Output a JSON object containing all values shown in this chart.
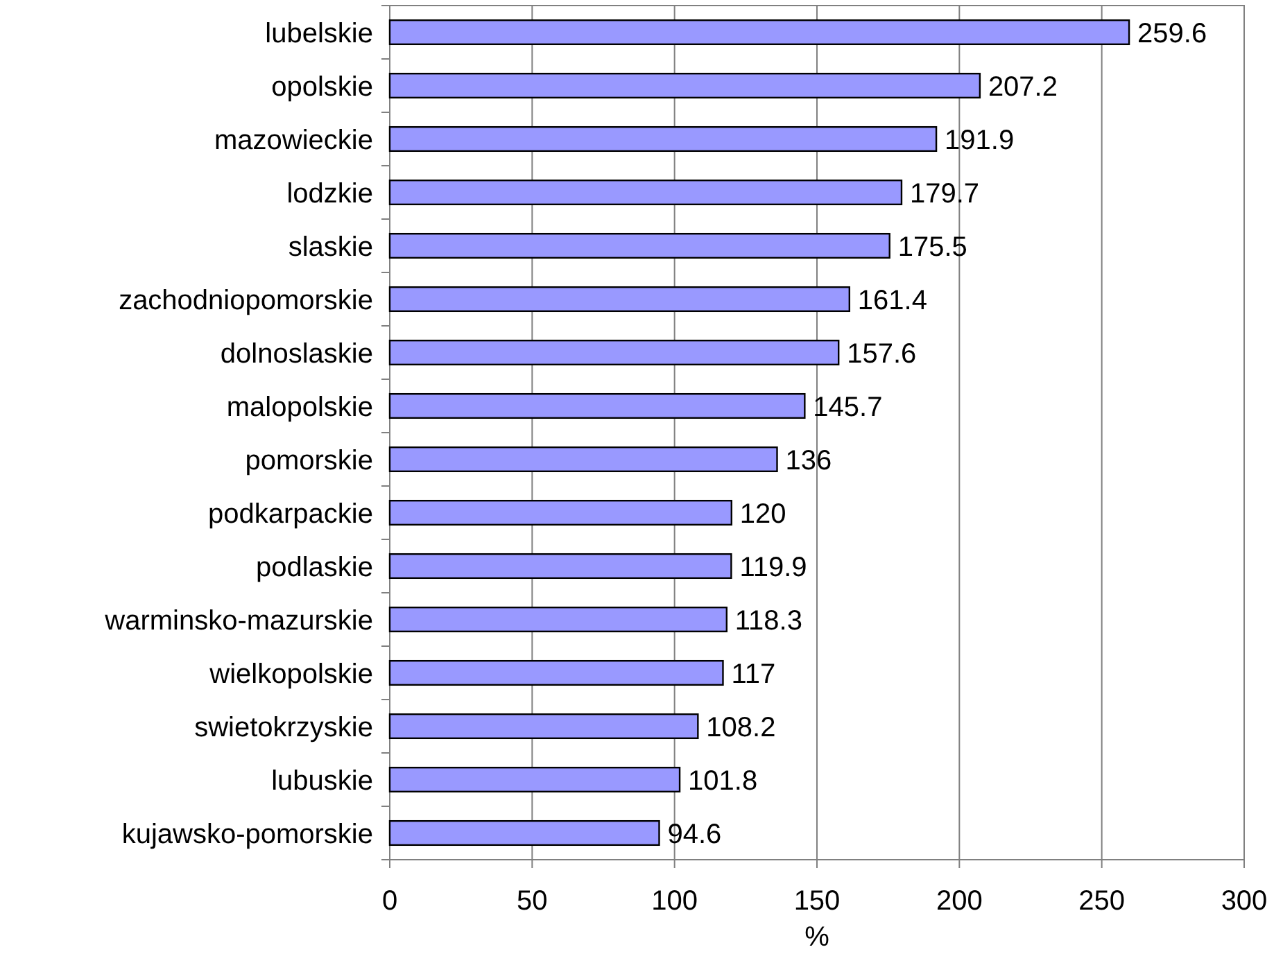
{
  "chart_data": {
    "type": "bar",
    "orientation": "horizontal",
    "xlabel": "%",
    "categories": [
      "lubelskie",
      "opolskie",
      "mazowieckie",
      "lodzkie",
      "slaskie",
      "zachodniopomorskie",
      "dolnoslaskie",
      "malopolskie",
      "pomorskie",
      "podkarpackie",
      "podlaskie",
      "warminsko-mazurskie",
      "wielkopolskie",
      "swietokrzyskie",
      "lubuskie",
      "kujawsko-pomorskie"
    ],
    "values": [
      259.6,
      207.2,
      191.9,
      179.7,
      175.5,
      161.4,
      157.6,
      145.7,
      136,
      120,
      119.9,
      118.3,
      117,
      108.2,
      101.8,
      94.6
    ],
    "color": "#9999ff",
    "xlim": [
      0,
      300
    ],
    "xticks": [
      0,
      50,
      100,
      150,
      200,
      250,
      300
    ],
    "grid": "x",
    "data_labels": true
  }
}
